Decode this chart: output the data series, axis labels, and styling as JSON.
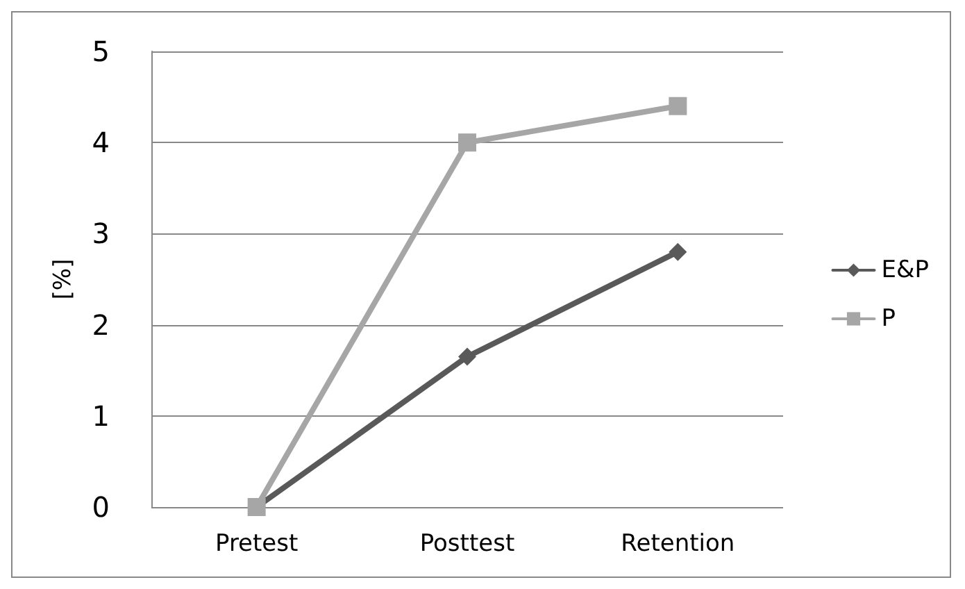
{
  "chart_data": {
    "type": "line",
    "ylabel": "[%]",
    "categories": [
      "Pretest",
      "Posttest",
      "Retention"
    ],
    "series": [
      {
        "name": "E&P",
        "color": "#595959",
        "values": [
          0,
          1.65,
          2.8
        ],
        "marker": "diamond"
      },
      {
        "name": "P",
        "color": "#a6a6a6",
        "values": [
          0,
          4.0,
          4.4
        ],
        "marker": "square"
      }
    ],
    "ylim": [
      0,
      5
    ],
    "yticks": [
      0,
      1,
      2,
      3,
      4,
      5
    ],
    "grid": "y",
    "legend": "right"
  }
}
